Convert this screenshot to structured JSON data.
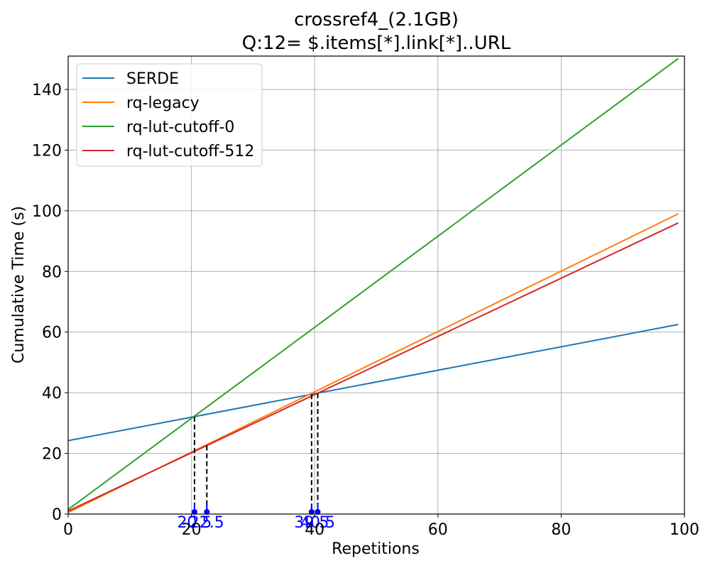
{
  "chart_data": {
    "type": "line",
    "title": [
      "crossref4_(2.1GB)",
      "Q:12= $.items[*].link[*]..URL"
    ],
    "xlabel": "Repetitions",
    "ylabel": "Cumulative Time (s)",
    "xlim": [
      0,
      100
    ],
    "ylim": [
      0,
      151
    ],
    "xticks": [
      0,
      20,
      40,
      60,
      80,
      100
    ],
    "yticks": [
      0,
      20,
      40,
      60,
      80,
      100,
      120,
      140
    ],
    "grid": true,
    "legend_position": "top-left",
    "series": [
      {
        "name": "SERDE",
        "color": "#1f77b4",
        "x": [
          0,
          99
        ],
        "y": [
          24.2,
          62.5
        ]
      },
      {
        "name": "rq-legacy",
        "color": "#ff7f0e",
        "x": [
          0,
          99
        ],
        "y": [
          0.5,
          99.0
        ]
      },
      {
        "name": "rq-lut-cutoff-0",
        "color": "#2ca02c",
        "x": [
          0,
          99
        ],
        "y": [
          1.5,
          150.2
        ]
      },
      {
        "name": "rq-lut-cutoff-512",
        "color": "#d62728",
        "x": [
          0,
          99
        ],
        "y": [
          1.0,
          96.0
        ]
      }
    ],
    "crossovers": [
      {
        "x": 20.5,
        "y": 32.1,
        "label": "20.5"
      },
      {
        "x": 22.5,
        "y": 22.6,
        "label": "22.5"
      },
      {
        "x": 39.5,
        "y": 39.5,
        "label": "39.5"
      },
      {
        "x": 40.5,
        "y": 39.8,
        "label": "40.5"
      }
    ],
    "crossover_color": "#0000ff"
  }
}
